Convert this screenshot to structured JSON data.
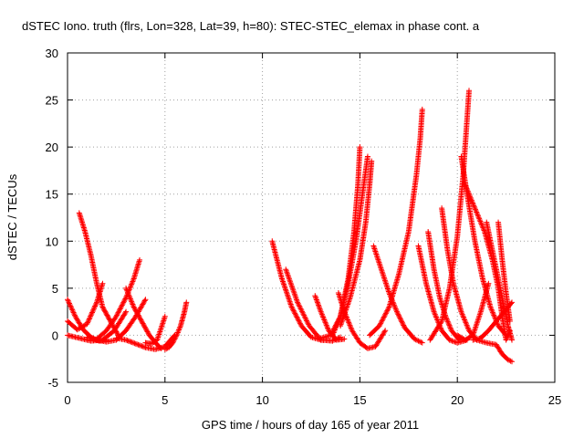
{
  "chart_data": {
    "type": "scatter",
    "title": "dSTEC Iono. truth (flrs, Lon=328, Lat=39, h=80): STEC-STEC_elemax in phase cont. a",
    "xlabel": "GPS time / hours of day 165 of year 2011",
    "ylabel": "dSTEC  / TECUs",
    "xlim": [
      0,
      25
    ],
    "ylim": [
      -5,
      30
    ],
    "xticks": [
      0,
      5,
      10,
      15,
      20,
      25
    ],
    "yticks": [
      -5,
      0,
      5,
      10,
      15,
      20,
      25,
      30
    ],
    "grid": true,
    "marker": "plus",
    "color": "#ff0000",
    "arcs": [
      {
        "x": [
          0.0,
          0.4,
          0.8,
          1.2,
          1.6,
          2.0
        ],
        "y": [
          3.8,
          2.0,
          0.6,
          -0.2,
          -0.6,
          -0.5
        ]
      },
      {
        "x": [
          0.0,
          0.5,
          1.0,
          1.5,
          1.8
        ],
        "y": [
          1.5,
          0.6,
          1.2,
          3.5,
          5.5
        ]
      },
      {
        "x": [
          0.0,
          0.6,
          1.2,
          1.8,
          2.4,
          3.0
        ],
        "y": [
          0.0,
          -0.3,
          -0.6,
          -0.5,
          0.5,
          2.5
        ]
      },
      {
        "x": [
          0.6,
          0.9,
          1.2,
          1.5,
          1.8,
          2.2,
          2.6
        ],
        "y": [
          13.0,
          11.0,
          8.5,
          5.5,
          3.0,
          1.5,
          0.0
        ]
      },
      {
        "x": [
          1.0,
          1.5,
          2.0,
          2.5,
          3.0,
          3.5,
          4.0
        ],
        "y": [
          -0.2,
          -0.5,
          -0.7,
          -0.5,
          0.5,
          2.0,
          3.8
        ]
      },
      {
        "x": [
          1.5,
          2.0,
          2.5,
          3.0,
          3.4,
          3.7
        ],
        "y": [
          -0.4,
          0.5,
          2.0,
          4.0,
          6.0,
          8.0
        ]
      },
      {
        "x": [
          3.0,
          3.4,
          3.8,
          4.2,
          4.6,
          4.8
        ],
        "y": [
          5.0,
          3.0,
          1.5,
          0.0,
          -1.0,
          -1.4
        ]
      },
      {
        "x": [
          2.5,
          3.0,
          3.5,
          4.0,
          4.5,
          5.0,
          5.5
        ],
        "y": [
          -0.3,
          -0.5,
          -0.9,
          -1.3,
          -1.5,
          -1.2,
          0.0
        ]
      },
      {
        "x": [
          5.0,
          5.2,
          5.4,
          5.6,
          5.8,
          6.0,
          6.1
        ],
        "y": [
          -1.5,
          -1.3,
          -0.8,
          0.0,
          1.0,
          2.5,
          3.5
        ]
      },
      {
        "x": [
          4.0,
          4.3,
          4.6,
          5.0
        ],
        "y": [
          -0.8,
          -0.9,
          -0.5,
          2.0
        ]
      },
      {
        "x": [
          10.5,
          11.0,
          11.5,
          12.0,
          12.5,
          13.0
        ],
        "y": [
          10.0,
          6.0,
          3.0,
          1.0,
          -0.2,
          -0.5
        ]
      },
      {
        "x": [
          11.2,
          11.8,
          12.4,
          13.0,
          13.6,
          14.0
        ],
        "y": [
          7.0,
          3.5,
          1.0,
          -0.5,
          -0.6,
          -0.2
        ]
      },
      {
        "x": [
          12.7,
          13.0,
          13.4,
          13.8,
          14.2
        ],
        "y": [
          4.2,
          2.5,
          0.5,
          -0.5,
          -0.4
        ]
      },
      {
        "x": [
          13.0,
          13.5,
          14.0,
          14.4,
          14.7,
          14.9,
          15.0
        ],
        "y": [
          -0.3,
          0.0,
          2.0,
          6.0,
          11.0,
          16.0,
          20.0
        ]
      },
      {
        "x": [
          13.6,
          14.0,
          14.4,
          14.8,
          15.1,
          15.4
        ],
        "y": [
          0.0,
          2.0,
          5.5,
          10.0,
          14.5,
          19.0
        ]
      },
      {
        "x": [
          14.0,
          14.5,
          15.0,
          15.3,
          15.5,
          15.6
        ],
        "y": [
          1.0,
          4.0,
          8.0,
          12.0,
          16.0,
          18.5
        ]
      },
      {
        "x": [
          13.9,
          14.2,
          14.6,
          15.0,
          15.4,
          15.8,
          16.3
        ],
        "y": [
          4.5,
          2.5,
          0.5,
          -0.8,
          -1.4,
          -1.2,
          0.5
        ]
      },
      {
        "x": [
          15.7,
          16.1,
          16.5,
          16.9,
          17.3,
          17.8,
          18.2
        ],
        "y": [
          9.5,
          7.0,
          4.5,
          2.5,
          0.8,
          -0.4,
          -0.8
        ]
      },
      {
        "x": [
          15.5,
          16.0,
          16.5,
          17.0,
          17.5,
          17.9,
          18.1,
          18.2
        ],
        "y": [
          0.0,
          1.0,
          3.0,
          6.5,
          11.0,
          17.0,
          21.0,
          24.0
        ]
      },
      {
        "x": [
          18.0,
          18.4,
          18.8,
          19.2,
          19.6,
          20.0,
          20.5
        ],
        "y": [
          9.5,
          5.5,
          2.5,
          0.5,
          -0.5,
          -0.8,
          -0.5
        ]
      },
      {
        "x": [
          18.5,
          18.8,
          19.1,
          19.4,
          19.7,
          20.1
        ],
        "y": [
          11.0,
          7.0,
          4.0,
          2.0,
          0.5,
          -0.5
        ]
      },
      {
        "x": [
          19.2,
          19.5,
          19.8,
          20.2,
          20.6,
          21.0
        ],
        "y": [
          13.5,
          9.0,
          5.5,
          2.5,
          0.5,
          -0.5
        ]
      },
      {
        "x": [
          18.6,
          19.2,
          19.6,
          20.0,
          20.3,
          20.6
        ],
        "y": [
          -0.5,
          1.5,
          5.0,
          10.5,
          17.0,
          26.0
        ]
      },
      {
        "x": [
          20.2,
          20.5,
          20.9,
          21.3,
          21.7,
          22.1,
          22.5
        ],
        "y": [
          19.0,
          15.0,
          10.0,
          6.0,
          3.0,
          1.0,
          0.0
        ]
      },
      {
        "x": [
          20.4,
          20.9,
          21.4,
          21.8,
          22.1,
          22.3,
          22.5,
          22.7
        ],
        "y": [
          16.0,
          13.5,
          11.0,
          8.0,
          5.0,
          2.0,
          -0.5,
          0.5
        ]
      },
      {
        "x": [
          20.0,
          20.4,
          20.8,
          21.2,
          21.6
        ],
        "y": [
          0.0,
          -0.5,
          0.0,
          2.5,
          5.5
        ]
      },
      {
        "x": [
          20.8,
          21.2,
          21.6,
          22.0,
          22.4,
          22.8
        ],
        "y": [
          -0.5,
          -0.3,
          0.5,
          1.5,
          2.5,
          3.5
        ]
      },
      {
        "x": [
          21.5,
          21.9,
          22.3,
          22.6,
          22.8
        ],
        "y": [
          12.0,
          8.0,
          4.0,
          1.0,
          -0.5
        ]
      },
      {
        "x": [
          21.0,
          21.5,
          22.0,
          22.3,
          22.6,
          22.8
        ],
        "y": [
          -0.5,
          -0.8,
          -1.0,
          -2.0,
          -2.6,
          -2.8
        ]
      },
      {
        "x": [
          22.1,
          22.3,
          22.5,
          22.7
        ],
        "y": [
          12.0,
          8.0,
          4.5,
          1.5
        ]
      }
    ]
  }
}
